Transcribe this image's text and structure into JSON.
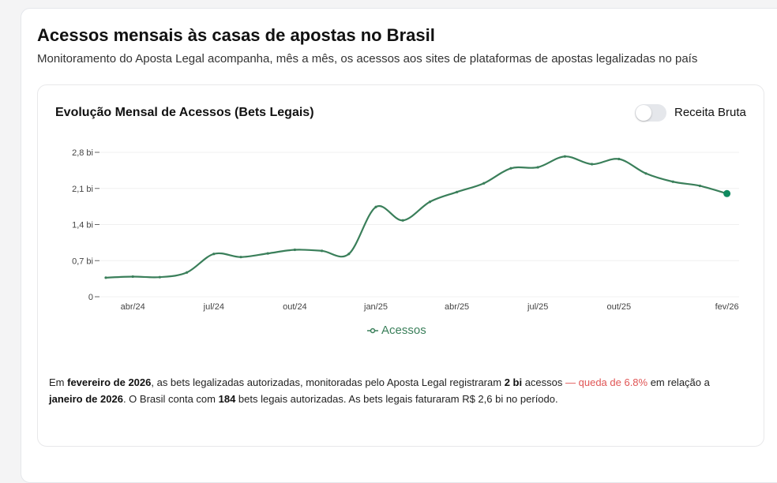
{
  "header": {
    "title": "Acessos mensais às casas de apostas no Brasil",
    "subtitle": "Monitoramento do Aposta Legal acompanha, mês a mês, os acessos aos sites de plataformas de apostas legalizadas no país"
  },
  "card": {
    "title": "Evolução Mensal de Acessos (Bets Legais)",
    "toggle_label": "Receita Bruta",
    "toggle_on": false
  },
  "summary": {
    "p1": "Em ",
    "month": "fevereiro de 2026",
    "p2": ", as bets legalizadas autorizadas, monitoradas pelo Aposta Legal registraram ",
    "value": "2 bi",
    "p3": " acessos ",
    "change": "— queda de 6.8%",
    "p4": " em relação a ",
    "prev_month": "janeiro de 2026",
    "p5": ". O Brasil conta com ",
    "count": "184",
    "p6": " bets legais autorizadas. As bets legais faturaram R$ 2,6 bi no período."
  },
  "chart_data": {
    "type": "line",
    "x": [
      "mar/24",
      "abr/24",
      "mai/24",
      "jun/24",
      "jul/24",
      "ago/24",
      "set/24",
      "out/24",
      "nov/24",
      "dez/24",
      "jan/25",
      "fev/25",
      "mar/25",
      "abr/25",
      "mai/25",
      "jun/25",
      "jul/25",
      "ago/25",
      "set/25",
      "out/25",
      "nov/25",
      "dez/25",
      "jan/26",
      "fev/26"
    ],
    "series": [
      {
        "name": "Acessos",
        "color": "#3a7f5a",
        "values": [
          0.37,
          0.39,
          0.38,
          0.47,
          0.83,
          0.77,
          0.84,
          0.91,
          0.89,
          0.83,
          1.74,
          1.48,
          1.84,
          2.03,
          2.2,
          2.49,
          2.51,
          2.72,
          2.57,
          2.67,
          2.39,
          2.23,
          2.15,
          2.0
        ]
      }
    ],
    "x_tick_labels": [
      "abr/24",
      "jul/24",
      "out/24",
      "jan/25",
      "abr/25",
      "jul/25",
      "out/25",
      "fev/26"
    ],
    "y_ticks": [
      0,
      0.7,
      1.4,
      2.1,
      2.8
    ],
    "y_tick_labels": [
      "0",
      "0,7 bi",
      "1,4 bi",
      "2,1 bi",
      "2,8 bi"
    ],
    "ylim": [
      0,
      2.8
    ],
    "grid": true,
    "legend": "bottom-center",
    "highlight_color": "#0f8a5f"
  }
}
